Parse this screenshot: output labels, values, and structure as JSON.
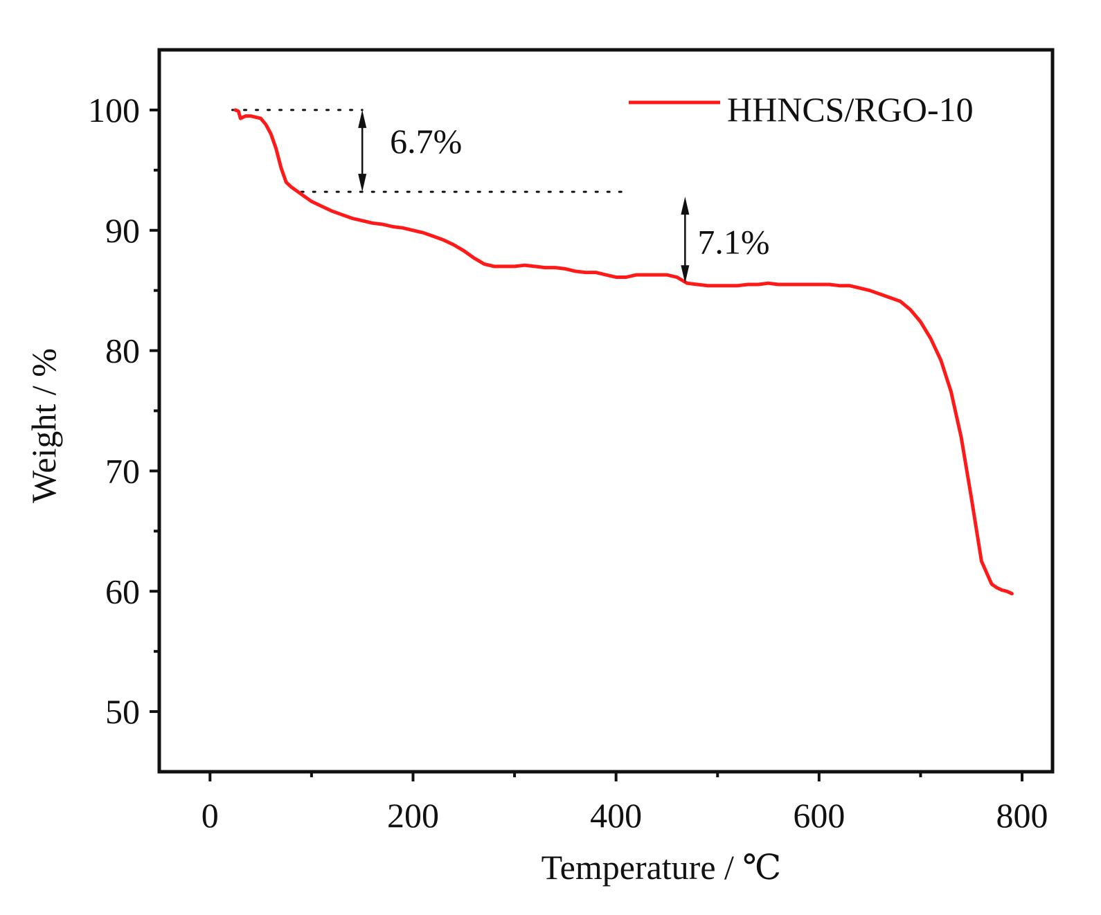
{
  "chart_data": {
    "type": "line",
    "xlabel": "Temperature / ℃",
    "ylabel": "Weight / %",
    "xlim": [
      -50,
      830
    ],
    "ylim": [
      45,
      105
    ],
    "x_ticks": [
      0,
      200,
      400,
      600,
      800
    ],
    "x_minor_ticks": [
      100,
      300,
      500,
      700
    ],
    "y_ticks": [
      50,
      60,
      70,
      80,
      90,
      100
    ],
    "y_minor_ticks": [
      55,
      65,
      75,
      85,
      95
    ],
    "x_tick_labels": [
      "0",
      "200",
      "400",
      "600",
      "800"
    ],
    "y_tick_labels": [
      "50",
      "60",
      "70",
      "80",
      "90",
      "100"
    ],
    "grid": false,
    "legend_position": "top-right",
    "series": [
      {
        "name": "HHNCS/RGO-10",
        "color": "#ff1a1a",
        "x": [
          25,
          28,
          30,
          35,
          40,
          50,
          55,
          60,
          65,
          70,
          75,
          80,
          85,
          90,
          100,
          110,
          120,
          130,
          140,
          150,
          160,
          170,
          180,
          190,
          200,
          210,
          220,
          230,
          240,
          250,
          260,
          270,
          280,
          290,
          300,
          310,
          320,
          330,
          340,
          350,
          360,
          370,
          380,
          390,
          400,
          410,
          420,
          430,
          440,
          450,
          460,
          470,
          480,
          490,
          500,
          510,
          520,
          530,
          540,
          550,
          560,
          570,
          580,
          590,
          600,
          610,
          620,
          630,
          640,
          650,
          660,
          670,
          680,
          690,
          700,
          710,
          720,
          730,
          740,
          750,
          760,
          770,
          775,
          780,
          785,
          790
        ],
        "y": [
          100.0,
          99.9,
          99.3,
          99.5,
          99.5,
          99.3,
          98.8,
          98.0,
          96.8,
          95.2,
          94.0,
          93.6,
          93.3,
          93.0,
          92.4,
          92.0,
          91.6,
          91.3,
          91.0,
          90.8,
          90.6,
          90.5,
          90.3,
          90.2,
          90.0,
          89.8,
          89.5,
          89.2,
          88.8,
          88.3,
          87.7,
          87.2,
          87.0,
          87.0,
          87.0,
          87.1,
          87.0,
          86.9,
          86.9,
          86.8,
          86.6,
          86.5,
          86.5,
          86.3,
          86.1,
          86.1,
          86.3,
          86.3,
          86.3,
          86.3,
          86.1,
          85.6,
          85.5,
          85.4,
          85.4,
          85.4,
          85.4,
          85.5,
          85.5,
          85.6,
          85.5,
          85.5,
          85.5,
          85.5,
          85.5,
          85.5,
          85.4,
          85.4,
          85.2,
          85.0,
          84.7,
          84.4,
          84.1,
          83.4,
          82.4,
          81.0,
          79.2,
          76.6,
          72.8,
          67.8,
          62.5,
          60.6,
          60.3,
          60.1,
          60.0,
          59.8
        ]
      }
    ],
    "annotations": [
      {
        "label": "6.7%",
        "x": 150,
        "y_top": 100.0,
        "y_bottom": 93.2
      },
      {
        "label": "7.1%",
        "x": 468,
        "y_top": 92.8,
        "y_bottom": 85.6
      }
    ],
    "reference_lines": [
      {
        "y": 100.0,
        "x_start": 22,
        "x_end": 150
      },
      {
        "y": 93.2,
        "x_start": 90,
        "x_end": 410
      }
    ]
  },
  "colors": {
    "axis": "#111111",
    "series": "#ff1a1a",
    "annotation": "#111111",
    "background": "#ffffff"
  }
}
